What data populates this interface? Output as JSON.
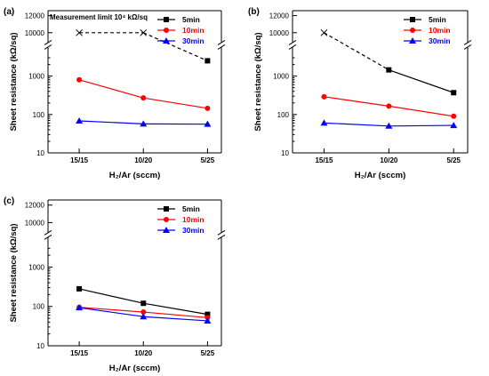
{
  "colors": {
    "5min": "#000000",
    "10min": "#ff0000",
    "30min": "#0000ff",
    "frame": "#000000"
  },
  "chart_data": [
    {
      "panel_label": "(a)",
      "type": "line",
      "yscale": "log",
      "xlabel": "H₂/Ar (sccm)",
      "ylabel": "Sheet resistance (kΩ/sq)",
      "categories": [
        "15/15",
        "10/20",
        "5/25"
      ],
      "yticks_lower": [
        "10",
        "100",
        "1000"
      ],
      "yticks_upper": [
        "10000",
        "12000"
      ],
      "annotation": "Measurement limit  10⁴ kΩ/sq",
      "legend_position": "top-right",
      "series": [
        {
          "name": "5min",
          "marker": "square",
          "color": "#000000",
          "values": [
            10000,
            10000,
            2500
          ],
          "limit_points": [
            true,
            true,
            false
          ],
          "dashed": true
        },
        {
          "name": "10min",
          "marker": "circle",
          "color": "#ff0000",
          "values": [
            800,
            270,
            145
          ]
        },
        {
          "name": "30min",
          "marker": "triangle",
          "color": "#0000ff",
          "values": [
            68,
            57,
            56
          ]
        }
      ]
    },
    {
      "panel_label": "(b)",
      "type": "line",
      "yscale": "log",
      "xlabel": "H₂/Ar (sccm)",
      "ylabel": "Sheet resistance (kΩ/sq)",
      "categories": [
        "15/15",
        "10/20",
        "5/25"
      ],
      "yticks_lower": [
        "10",
        "100",
        "1000"
      ],
      "yticks_upper": [
        "10000",
        "12000"
      ],
      "legend_position": "top-right",
      "series": [
        {
          "name": "5min",
          "marker": "square",
          "color": "#000000",
          "values": [
            10000,
            1450,
            370
          ],
          "limit_points": [
            true,
            false,
            false
          ],
          "dashed_segment": [
            0,
            1
          ]
        },
        {
          "name": "10min",
          "marker": "circle",
          "color": "#ff0000",
          "values": [
            290,
            165,
            90
          ]
        },
        {
          "name": "30min",
          "marker": "triangle",
          "color": "#0000ff",
          "values": [
            60,
            50,
            52
          ]
        }
      ]
    },
    {
      "panel_label": "(c)",
      "type": "line",
      "yscale": "log",
      "xlabel": "H₂/Ar (sccm)",
      "ylabel": "Sheet resistance (kΩ/sq)",
      "categories": [
        "15/15",
        "10/20",
        "5/25"
      ],
      "yticks_lower": [
        "10",
        "100",
        "1000"
      ],
      "yticks_upper": [
        "10000",
        "12000"
      ],
      "legend_position": "top-right",
      "series": [
        {
          "name": "5min",
          "marker": "square",
          "color": "#000000",
          "values": [
            280,
            120,
            63
          ]
        },
        {
          "name": "10min",
          "marker": "circle",
          "color": "#ff0000",
          "values": [
            95,
            72,
            52
          ]
        },
        {
          "name": "30min",
          "marker": "triangle",
          "color": "#0000ff",
          "values": [
            93,
            55,
            43
          ]
        }
      ]
    }
  ]
}
